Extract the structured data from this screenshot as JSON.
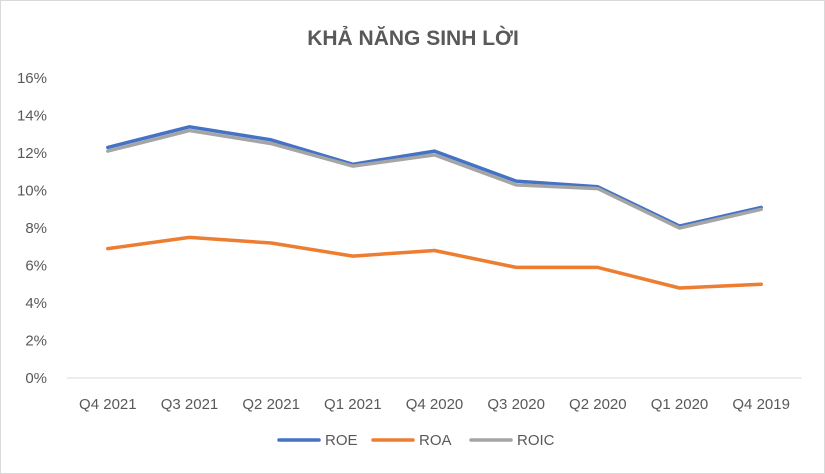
{
  "chart_data": {
    "type": "line",
    "title": "KHẢ NĂNG SINH LỜI",
    "categories": [
      "Q4 2021",
      "Q3 2021",
      "Q2 2021",
      "Q1 2021",
      "Q4 2020",
      "Q3 2020",
      "Q2 2020",
      "Q1 2020",
      "Q4 2019"
    ],
    "series": [
      {
        "name": "ROE",
        "color": "#4472C4",
        "values": [
          12.3,
          13.4,
          12.7,
          11.4,
          12.1,
          10.5,
          10.2,
          8.1,
          9.1
        ]
      },
      {
        "name": "ROA",
        "color": "#ED7D31",
        "values": [
          6.9,
          7.5,
          7.2,
          6.5,
          6.8,
          5.9,
          5.9,
          4.8,
          5.0
        ]
      },
      {
        "name": "ROIC",
        "color": "#A5A5A5",
        "values": [
          12.1,
          13.2,
          12.5,
          11.3,
          11.9,
          10.3,
          10.1,
          8.0,
          9.0
        ]
      }
    ],
    "yticks": [
      "0%",
      "2%",
      "4%",
      "6%",
      "8%",
      "10%",
      "12%",
      "14%",
      "16%"
    ],
    "ylim": [
      0,
      16
    ],
    "ylabel": "",
    "xlabel": "",
    "grid": false,
    "legend_position": "bottom"
  }
}
